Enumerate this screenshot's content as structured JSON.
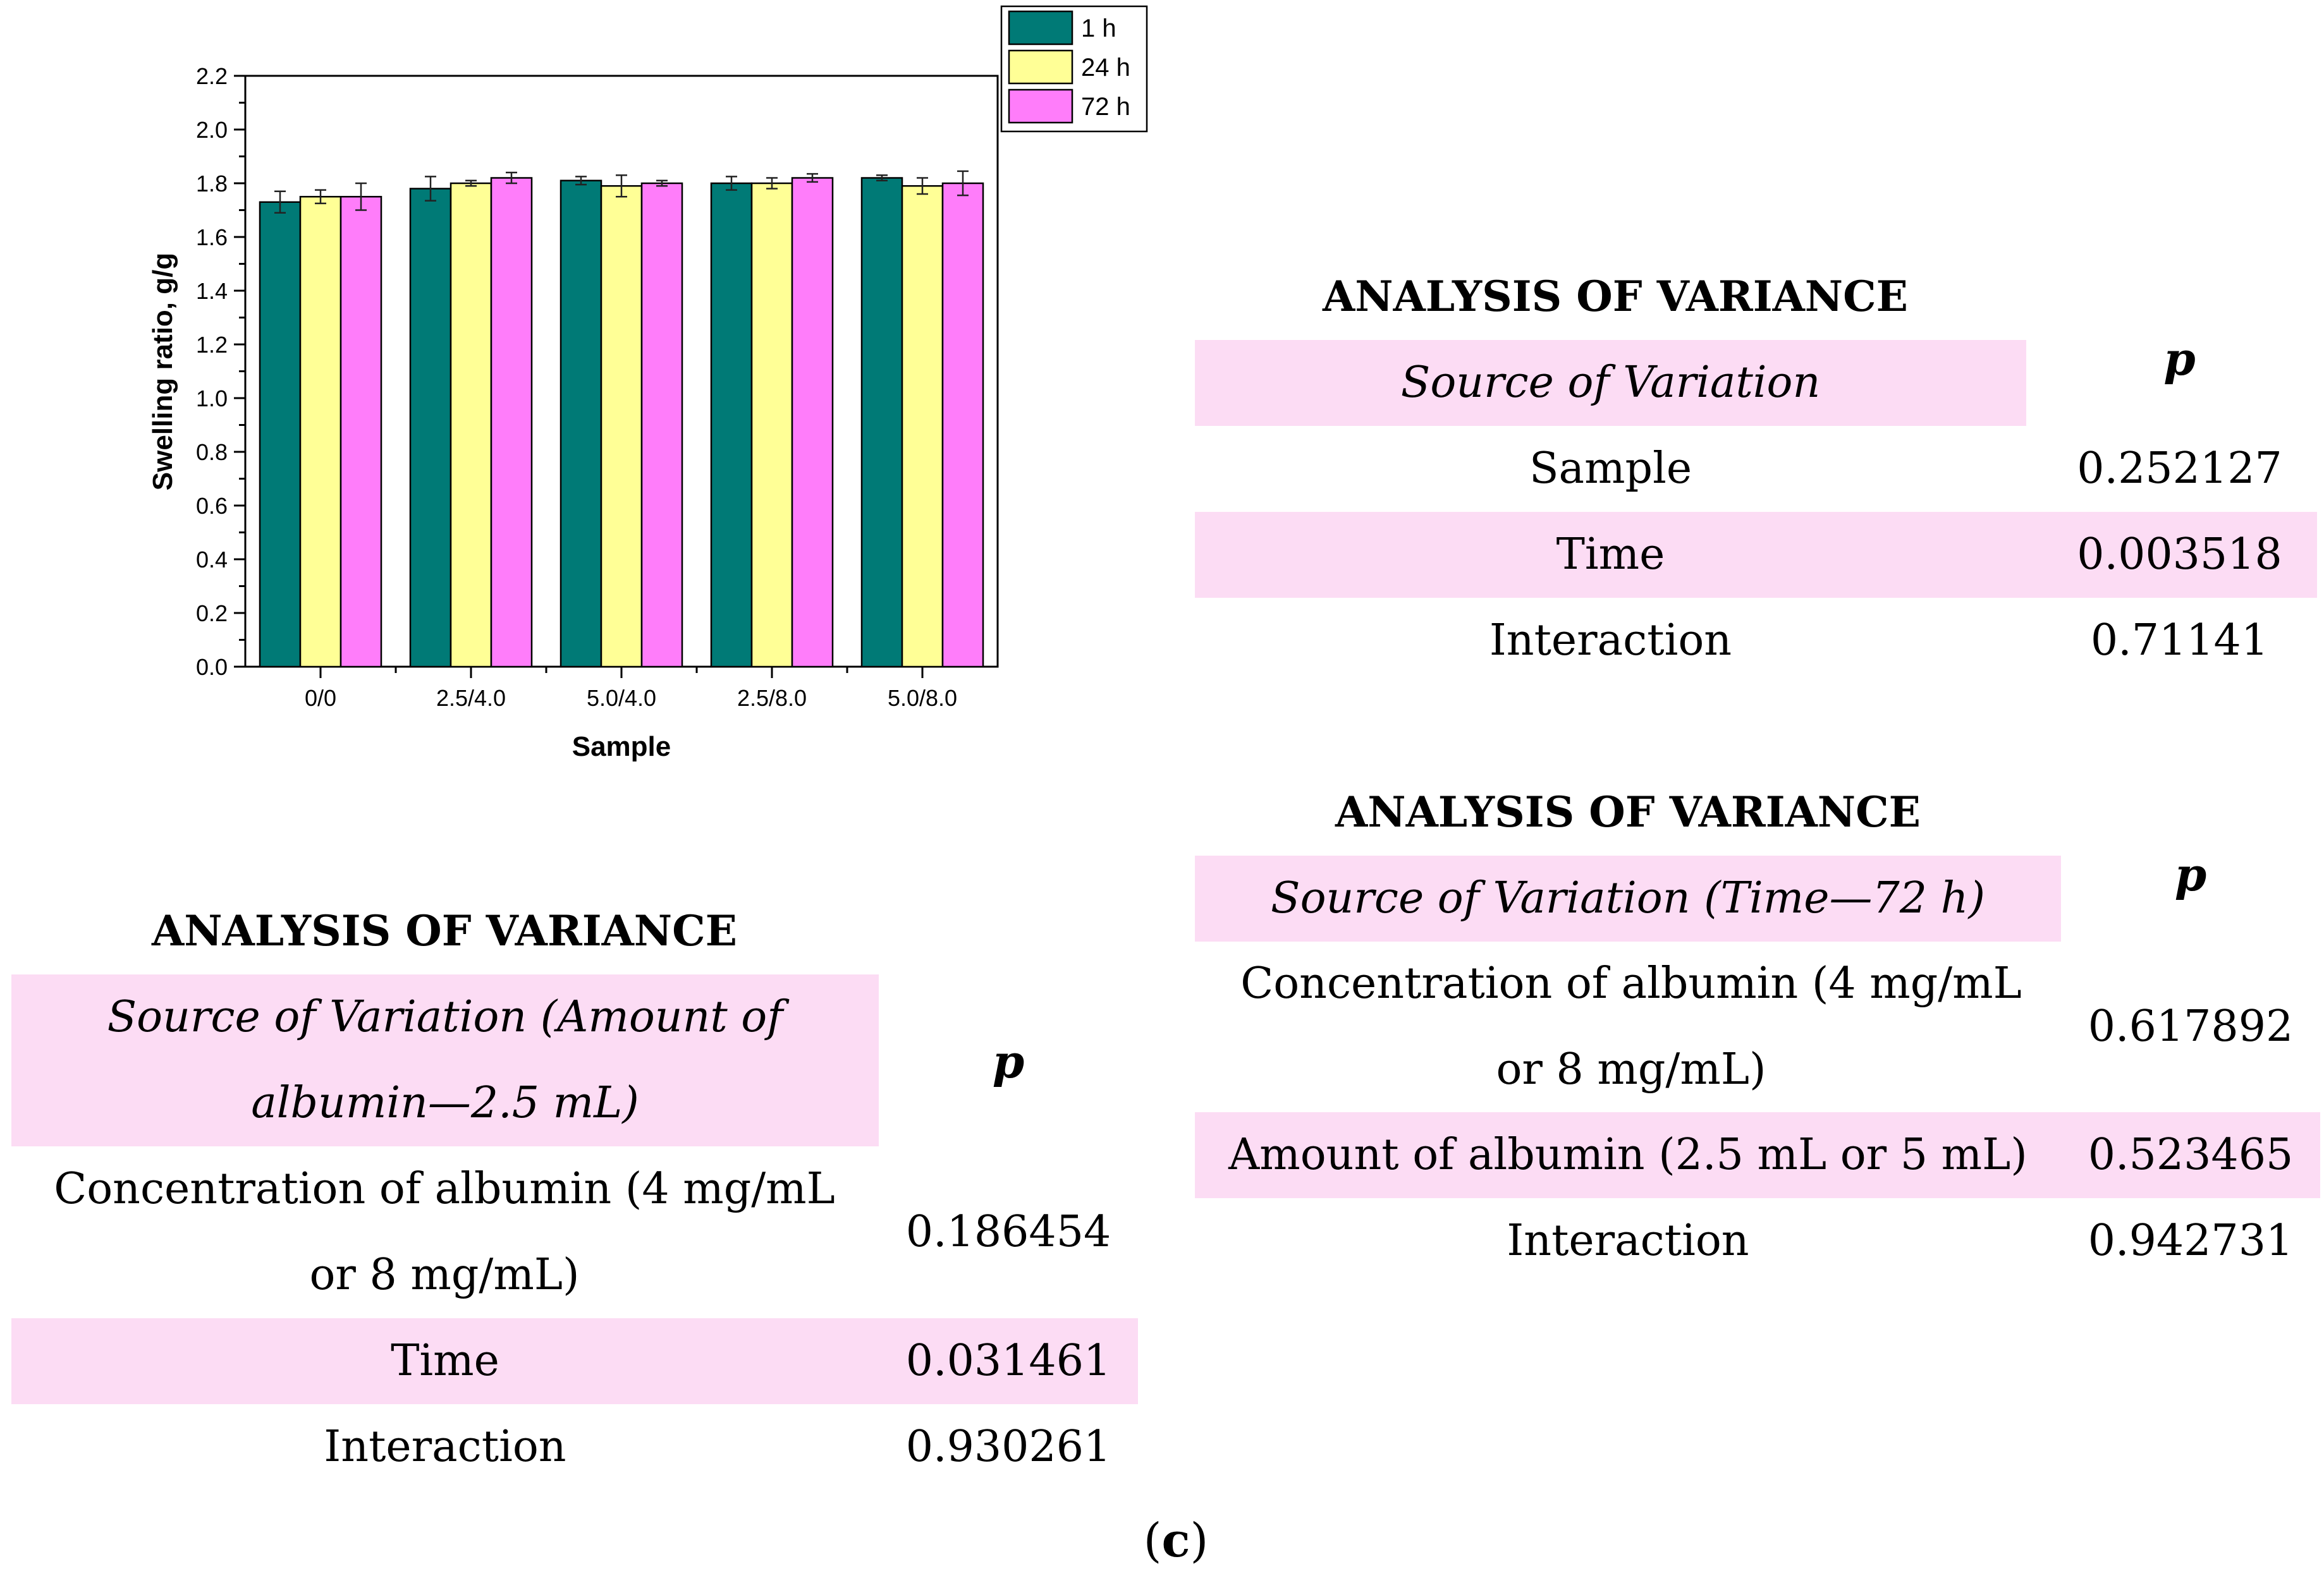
{
  "chart_data": {
    "type": "bar",
    "title": "",
    "xlabel": "Sample",
    "ylabel": "Swelling ratio, g/g",
    "ylim": [
      0.0,
      2.2
    ],
    "yticks": [
      "0.0",
      "0.2",
      "0.4",
      "0.6",
      "0.8",
      "1.0",
      "1.2",
      "1.4",
      "1.6",
      "1.8",
      "2.0",
      "2.2"
    ],
    "categories": [
      "0/0",
      "2.5/4.0",
      "5.0/4.0",
      "2.5/8.0",
      "5.0/8.0"
    ],
    "legend_position": "top-right",
    "series": [
      {
        "name": "1 h",
        "color": "#007a76",
        "values": [
          1.73,
          1.78,
          1.81,
          1.8,
          1.82
        ],
        "errors": [
          0.04,
          0.045,
          0.015,
          0.025,
          0.01
        ]
      },
      {
        "name": "24 h",
        "color": "#ffff96",
        "values": [
          1.75,
          1.8,
          1.79,
          1.8,
          1.79
        ],
        "errors": [
          0.025,
          0.01,
          0.04,
          0.02,
          0.03
        ]
      },
      {
        "name": "72 h",
        "color": "#ff7dfa",
        "values": [
          1.75,
          1.82,
          1.8,
          1.82,
          1.8
        ],
        "errors": [
          0.05,
          0.02,
          0.01,
          0.015,
          0.045
        ]
      }
    ]
  },
  "anova_tables": [
    {
      "title": "ANALYSIS OF VARIANCE",
      "source_header": "Source of Variation",
      "p_header": "p",
      "rows": [
        {
          "source": "Sample",
          "p": "0.252127"
        },
        {
          "source": "Time",
          "p": "0.003518"
        },
        {
          "source": "Interaction",
          "p": "0.71141"
        }
      ]
    },
    {
      "title": "ANALYSIS OF VARIANCE",
      "source_header": "Source of Variation (Time—72 h)",
      "p_header": "p",
      "rows": [
        {
          "source": "Concentration of albumin (4 mg/mL or 8 mg/mL)",
          "p": "0.617892"
        },
        {
          "source": "Amount of albumin (2.5 mL or 5 mL)",
          "p": "0.523465"
        },
        {
          "source": "Interaction",
          "p": "0.942731"
        }
      ]
    },
    {
      "title": "ANALYSIS OF VARIANCE",
      "source_header": "Source of Variation (Amount of albumin—2.5 mL)",
      "p_header": "p",
      "rows": [
        {
          "source": "Concentration of albumin (4 mg/mL or 8 mg/mL)",
          "p": "0.186454"
        },
        {
          "source": "Time",
          "p": "0.031461"
        },
        {
          "source": "Interaction",
          "p": "0.930261"
        }
      ]
    }
  ],
  "caption": {
    "open": "(",
    "letter": "c",
    "close": ")"
  }
}
